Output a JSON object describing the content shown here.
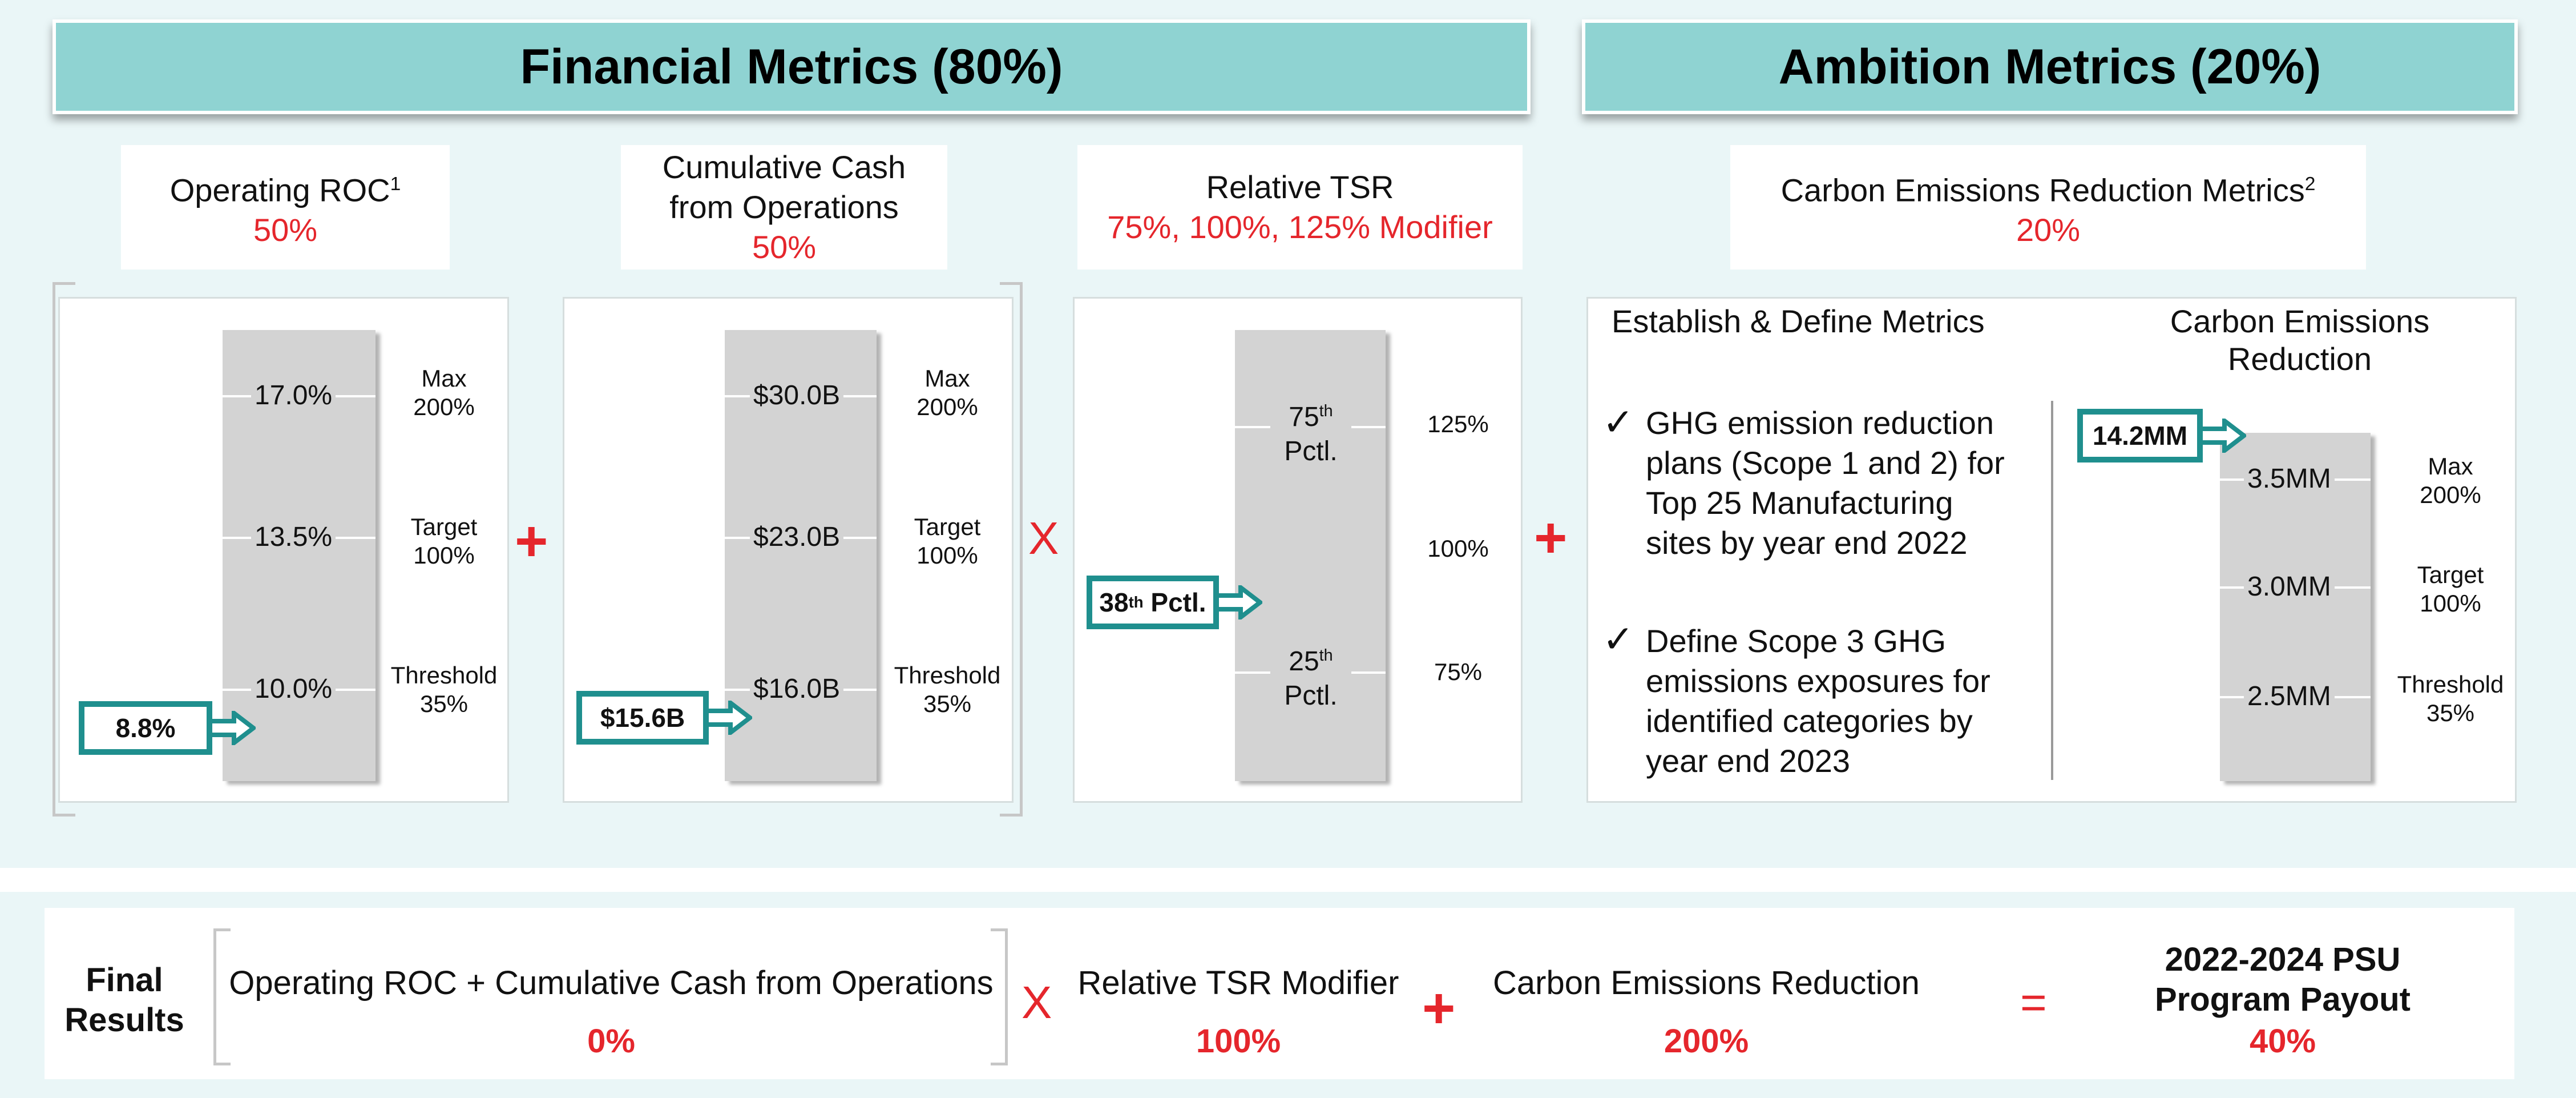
{
  "banners": {
    "financial": "Financial Metrics (80%)",
    "ambition": "Ambition Metrics (20%)"
  },
  "roc": {
    "title": "Operating ROC",
    "sup": "1",
    "weight": "50%",
    "bar_labels": [
      "17.0%",
      "13.5%",
      "10.0%"
    ],
    "side": [
      [
        "Max",
        "200%"
      ],
      [
        "Target",
        "100%"
      ],
      [
        "Threshold",
        "35%"
      ]
    ],
    "actual": "8.8%"
  },
  "cash": {
    "title_line1": "Cumulative Cash",
    "title_line2": "from Operations",
    "weight": "50%",
    "bar_labels": [
      "$30.0B",
      "$23.0B",
      "$16.0B"
    ],
    "side": [
      [
        "Max",
        "200%"
      ],
      [
        "Target",
        "100%"
      ],
      [
        "Threshold",
        "35%"
      ]
    ],
    "actual": "$15.6B"
  },
  "tsr": {
    "title": "Relative TSR",
    "weight": "75%, 100%, 125% Modifier",
    "top_label": {
      "num": "75",
      "sup": "th",
      "word": "Pctl."
    },
    "bottom_label": {
      "num": "25",
      "sup": "th",
      "word": "Pctl."
    },
    "side": [
      "125%",
      "100%",
      "75%"
    ],
    "actual": {
      "num": "38",
      "sup": "th",
      "word": "Pctl."
    }
  },
  "carbon": {
    "title": "Carbon Emissions Reduction Metrics",
    "sup": "2",
    "weight": "20%",
    "col1_title": "Establish & Define Metrics",
    "col2_title_line1": "Carbon Emissions",
    "col2_title_line2": "Reduction",
    "checks": [
      [
        "GHG emission reduction",
        "plans (Scope 1 and 2) for",
        "Top 25 Manufacturing",
        "sites by year end 2022"
      ],
      [
        "Define Scope 3 GHG",
        "emissions exposures for",
        "identified categories by",
        "year end 2023"
      ]
    ],
    "check_mark": "✓",
    "bar_labels": [
      "3.5MM",
      "3.0MM",
      "2.5MM"
    ],
    "side": [
      [
        "Max",
        "200%"
      ],
      [
        "Target",
        "100%"
      ],
      [
        "Threshold",
        "35%"
      ]
    ],
    "actual": "14.2MM"
  },
  "operators": {
    "plus": "+",
    "times": "X",
    "equals": "="
  },
  "final": {
    "label_line1": "Final",
    "label_line2": "Results",
    "part1": {
      "label": "Operating ROC + Cumulative Cash from Operations",
      "value": "0%"
    },
    "part2": {
      "label": "Relative TSR Modifier",
      "value": "100%"
    },
    "part3": {
      "label": "Carbon Emissions Reduction",
      "value": "200%"
    },
    "result_line1": "2022-2024 PSU",
    "result_line2": "Program Payout",
    "result_value": "40%"
  },
  "colors": {
    "banner": "#8fd3d2",
    "accent_red": "#e5262c",
    "teal": "#1f8f8e",
    "bar": "#d3d3d3",
    "bg": "#eaf6f7"
  }
}
